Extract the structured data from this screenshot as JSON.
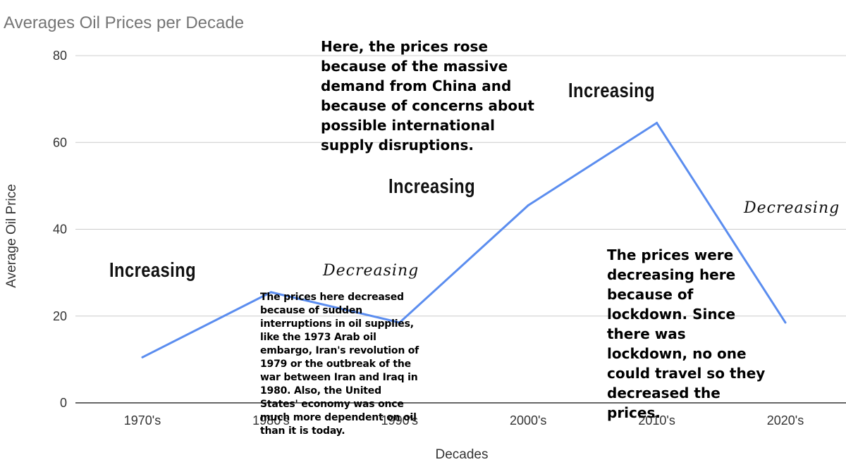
{
  "chart_data": {
    "type": "line",
    "title": "Averages Oil Prices per Decade",
    "xlabel": "Decades",
    "ylabel": "Average Oil Price",
    "categories": [
      "1970's",
      "1980's",
      "1990's",
      "2000's",
      "2010's",
      "2020's"
    ],
    "series": [
      {
        "values": [
          10.5,
          25.5,
          18.5,
          45.5,
          64.5,
          18.5
        ]
      }
    ],
    "ylim": [
      0,
      80
    ],
    "yticks": [
      0,
      20,
      40,
      60,
      80
    ],
    "grid": true,
    "line_color": "#5b8def"
  },
  "annotations": {
    "china_note": "Here, the prices rose\nbecause of the massive\ndemand from China and\nbecause of concerns about\npossible international\nsupply disruptions.",
    "interruptions_note": "The prices here decreased\nbecause of sudden\ninterruptions in oil supplies,\nlike the 1973 Arab oil\nembargo, Iran's revolution of\n1979 or the outbreak of the\nwar between Iran and Iraq in\n1980. Also, the United\nStates' economy was once\nmuch more dependent on oil\nthan it is today.",
    "lockdown_note": "The prices were\ndecreasing here\nbecause of\nlockdown. Since\nthere was\nlockdown, no one\ncould travel so they\ndecreased the\nprices.",
    "increasing_1": "Increasing",
    "increasing_2": "Increasing",
    "increasing_3": "Increasing",
    "decreasing_1": "Decreasing",
    "decreasing_2": "Decreasing"
  }
}
